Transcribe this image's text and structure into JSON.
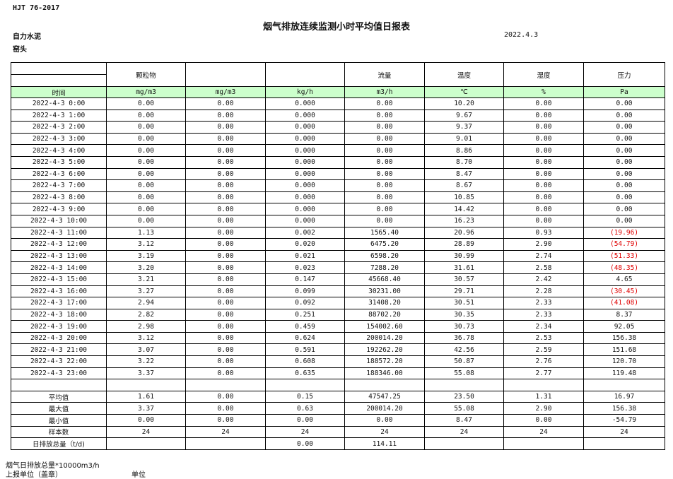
{
  "standard": "HJT  76-2017",
  "title": "烟气排放连续监测小时平均值日报表",
  "company": "自力水泥",
  "unit_name": "窑头",
  "date": "2022.4.3",
  "headers": [
    "",
    "颗粒物",
    "",
    "",
    "流量",
    "温度",
    "湿度",
    "压力"
  ],
  "units": [
    "时间",
    "mg/m3",
    "mg/m3",
    "kg/h",
    "m3/h",
    "℃",
    "%",
    "Pa"
  ],
  "negative_color": "#e00000",
  "rows": [
    [
      "2022-4-3 0:00",
      "0.00",
      "0.00",
      "0.000",
      "0.00",
      "10.20",
      "0.00",
      "0.00"
    ],
    [
      "2022-4-3 1:00",
      "0.00",
      "0.00",
      "0.000",
      "0.00",
      "9.67",
      "0.00",
      "0.00"
    ],
    [
      "2022-4-3 2:00",
      "0.00",
      "0.00",
      "0.000",
      "0.00",
      "9.37",
      "0.00",
      "0.00"
    ],
    [
      "2022-4-3 3:00",
      "0.00",
      "0.00",
      "0.000",
      "0.00",
      "9.01",
      "0.00",
      "0.00"
    ],
    [
      "2022-4-3 4:00",
      "0.00",
      "0.00",
      "0.000",
      "0.00",
      "8.86",
      "0.00",
      "0.00"
    ],
    [
      "2022-4-3 5:00",
      "0.00",
      "0.00",
      "0.000",
      "0.00",
      "8.70",
      "0.00",
      "0.00"
    ],
    [
      "2022-4-3 6:00",
      "0.00",
      "0.00",
      "0.000",
      "0.00",
      "8.47",
      "0.00",
      "0.00"
    ],
    [
      "2022-4-3 7:00",
      "0.00",
      "0.00",
      "0.000",
      "0.00",
      "8.67",
      "0.00",
      "0.00"
    ],
    [
      "2022-4-3 8:00",
      "0.00",
      "0.00",
      "0.000",
      "0.00",
      "10.85",
      "0.00",
      "0.00"
    ],
    [
      "2022-4-3 9:00",
      "0.00",
      "0.00",
      "0.000",
      "0.00",
      "14.42",
      "0.00",
      "0.00"
    ],
    [
      "2022-4-3 10:00",
      "0.00",
      "0.00",
      "0.000",
      "0.00",
      "16.23",
      "0.00",
      "0.00"
    ],
    [
      "2022-4-3 11:00",
      "1.13",
      "0.00",
      "0.002",
      "1565.40",
      "20.96",
      "0.93",
      "(19.96)"
    ],
    [
      "2022-4-3 12:00",
      "3.12",
      "0.00",
      "0.020",
      "6475.20",
      "28.89",
      "2.90",
      "(54.79)"
    ],
    [
      "2022-4-3 13:00",
      "3.19",
      "0.00",
      "0.021",
      "6598.20",
      "30.99",
      "2.74",
      "(51.33)"
    ],
    [
      "2022-4-3 14:00",
      "3.20",
      "0.00",
      "0.023",
      "7288.20",
      "31.61",
      "2.58",
      "(48.35)"
    ],
    [
      "2022-4-3 15:00",
      "3.21",
      "0.00",
      "0.147",
      "45668.40",
      "30.57",
      "2.42",
      "4.65"
    ],
    [
      "2022-4-3 16:00",
      "3.27",
      "0.00",
      "0.099",
      "30231.00",
      "29.71",
      "2.28",
      "(30.45)"
    ],
    [
      "2022-4-3 17:00",
      "2.94",
      "0.00",
      "0.092",
      "31408.20",
      "30.51",
      "2.33",
      "(41.08)"
    ],
    [
      "2022-4-3 18:00",
      "2.82",
      "0.00",
      "0.251",
      "88702.20",
      "30.35",
      "2.33",
      "8.37"
    ],
    [
      "2022-4-3 19:00",
      "2.98",
      "0.00",
      "0.459",
      "154002.60",
      "30.73",
      "2.34",
      "92.05"
    ],
    [
      "2022-4-3 20:00",
      "3.12",
      "0.00",
      "0.624",
      "200014.20",
      "36.78",
      "2.53",
      "156.38"
    ],
    [
      "2022-4-3 21:00",
      "3.07",
      "0.00",
      "0.591",
      "192262.20",
      "42.56",
      "2.59",
      "151.68"
    ],
    [
      "2022-4-3 22:00",
      "3.22",
      "0.00",
      "0.608",
      "188572.20",
      "50.87",
      "2.76",
      "120.70"
    ],
    [
      "2022-4-3 23:00",
      "3.37",
      "0.00",
      "0.635",
      "188346.00",
      "55.08",
      "2.77",
      "119.48"
    ]
  ],
  "summary": [
    [
      "平均值",
      "1.61",
      "0.00",
      "0.15",
      "47547.25",
      "23.50",
      "1.31",
      "16.97"
    ],
    [
      "最大值",
      "3.37",
      "0.00",
      "0.63",
      "200014.20",
      "55.08",
      "2.90",
      "156.38"
    ],
    [
      "最小值",
      "0.00",
      "0.00",
      "0.00",
      "0.00",
      "8.47",
      "0.00",
      "-54.79"
    ],
    [
      "样本数",
      "24",
      "24",
      "24",
      "24",
      "24",
      "24",
      "24"
    ],
    [
      "日排放总量（t/d)",
      "",
      "",
      "0.00",
      "114.11",
      "",
      "",
      ""
    ]
  ],
  "footer": {
    "note": "烟气日排放总量*10000m3/h",
    "reporter": "上报单位（盖章）",
    "unit_label": "单位"
  }
}
